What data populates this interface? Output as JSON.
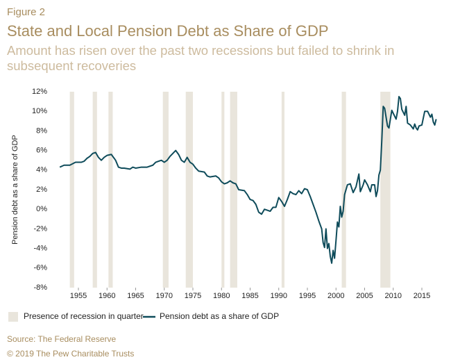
{
  "chart_data": {
    "type": "line",
    "figure_label": "Figure 2",
    "title": "State and Local Pension Debt as Share of GDP",
    "subtitle": [
      "Amount has risen over the past two recessions but failed to shrink in",
      "subsequent recoveries"
    ],
    "y_label": "Pension debt as a share of GDP",
    "source": "Source: The Federal Reserve",
    "copyright": "© 2019 The Pew Charitable Trusts",
    "xlim": [
      1951,
      2018
    ],
    "xticks": [
      1955,
      1960,
      1965,
      1970,
      1975,
      1980,
      1985,
      1990,
      1995,
      2000,
      2005,
      2010,
      2015
    ],
    "ylim": [
      -8,
      12
    ],
    "yticks": [
      {
        "value": -8,
        "label": "-8%"
      },
      {
        "value": -6,
        "label": "-6%"
      },
      {
        "value": -4,
        "label": "-4%"
      },
      {
        "value": -2,
        "label": "-2%"
      },
      {
        "value": 0,
        "label": "0%"
      },
      {
        "value": 2,
        "label": "2%"
      },
      {
        "value": 4,
        "label": "4%"
      },
      {
        "value": 6,
        "label": "6%"
      },
      {
        "value": 8,
        "label": "8%"
      },
      {
        "value": 10,
        "label": "10%"
      },
      {
        "value": 12,
        "label": "12%"
      }
    ],
    "recession_name": "Presence of recession in quarter",
    "recession_color": "#e9e5dc",
    "recessions": [
      [
        1953.5,
        1954.25
      ],
      [
        1957.5,
        1958.25
      ],
      [
        1960.25,
        1961.0
      ],
      [
        1969.75,
        1970.75
      ],
      [
        1973.75,
        1975.0
      ],
      [
        1980.0,
        1980.5
      ],
      [
        1981.5,
        1982.75
      ],
      [
        1990.5,
        1991.0
      ],
      [
        2001.0,
        2001.75
      ],
      [
        2007.75,
        2009.5
      ]
    ],
    "x": [
      1951.75,
      1952.5,
      1953.5,
      1954.5,
      1955.5,
      1956,
      1956.5,
      1957,
      1957.5,
      1958,
      1958.5,
      1959,
      1959.5,
      1960,
      1960.75,
      1961.5,
      1962,
      1962.5,
      1963,
      1964,
      1964.5,
      1965,
      1966,
      1967,
      1968,
      1968.5,
      1969,
      1969.5,
      1970,
      1970.5,
      1971,
      1971.5,
      1972,
      1972.5,
      1973,
      1973.5,
      1974,
      1974.5,
      1975,
      1975.5,
      1976,
      1977,
      1977.5,
      1978,
      1979,
      1979.5,
      1980,
      1980.5,
      1981,
      1981.5,
      1982,
      1982.5,
      1983,
      1984,
      1984.5,
      1985,
      1985.5,
      1986,
      1986.5,
      1987,
      1987.5,
      1988,
      1988.5,
      1989,
      1989.5,
      1990,
      1990.5,
      1991,
      1991.5,
      1992,
      1992.5,
      1993,
      1993.5,
      1994,
      1994.5,
      1995,
      1995.5,
      1996,
      1996.5,
      1997,
      1997.5,
      1997.75,
      1998,
      1998.25,
      1998.5,
      1998.75,
      1999,
      1999.25,
      1999.5,
      1999.75,
      2000,
      2000.25,
      2000.5,
      2000.75,
      2001,
      2001.25,
      2001.5,
      2002,
      2002.5,
      2003,
      2003.5,
      2004,
      2004.25,
      2004.75,
      2005,
      2005.5,
      2006,
      2006.25,
      2006.75,
      2007,
      2007.25,
      2007.5,
      2007.75,
      2008,
      2008.25,
      2008.5,
      2009,
      2009.25,
      2009.75,
      2010,
      2010.5,
      2010.75,
      2011,
      2011.25,
      2011.5,
      2012,
      2012.25,
      2012.5,
      2013,
      2013.5,
      2013.75,
      2014,
      2014.25,
      2014.5,
      2015,
      2015.5,
      2016,
      2016.25,
      2016.5,
      2016.75,
      2017,
      2017.25,
      2017.5
    ],
    "series": [
      {
        "name": "Pension debt as a share of GDP",
        "color": "#0e4b5a",
        "values": [
          4.3,
          4.5,
          4.5,
          4.8,
          4.8,
          4.9,
          5.2,
          5.4,
          5.7,
          5.8,
          5.3,
          5.0,
          5.3,
          5.5,
          5.6,
          5.0,
          4.3,
          4.2,
          4.2,
          4.1,
          4.3,
          4.2,
          4.3,
          4.3,
          4.5,
          4.8,
          4.9,
          5.0,
          4.8,
          5.0,
          5.4,
          5.7,
          6.0,
          5.6,
          5.0,
          4.8,
          5.3,
          4.8,
          4.6,
          4.2,
          3.9,
          3.8,
          3.4,
          3.3,
          3.4,
          3.2,
          2.8,
          2.6,
          2.7,
          2.9,
          2.7,
          2.6,
          2.0,
          1.9,
          1.5,
          1.0,
          0.9,
          0.5,
          -0.3,
          -0.5,
          0.0,
          -0.1,
          -0.2,
          0.2,
          0.2,
          1.2,
          0.8,
          0.3,
          1.0,
          1.8,
          1.6,
          1.5,
          1.9,
          1.6,
          2.1,
          2.0,
          1.3,
          0.5,
          -0.3,
          -1.2,
          -2.0,
          -3.4,
          -3.9,
          -2.0,
          -4.0,
          -3.5,
          -4.8,
          -5.5,
          -4.2,
          -5.0,
          -3.2,
          -1.3,
          -1.8,
          0.3,
          -0.8,
          -0.2,
          1.5,
          2.5,
          2.6,
          1.7,
          2.3,
          3.6,
          1.8,
          2.5,
          3.0,
          2.5,
          1.8,
          2.5,
          2.5,
          1.3,
          1.9,
          3.5,
          4.0,
          7.0,
          10.5,
          10.3,
          8.5,
          8.3,
          10.1,
          9.8,
          9.2,
          10.0,
          11.5,
          11.3,
          10.2,
          9.6,
          10.5,
          8.8,
          8.6,
          8.2,
          8.7,
          8.3,
          8.1,
          8.5,
          8.6,
          10.0,
          10.0,
          9.7,
          9.4,
          9.7,
          8.9,
          8.6,
          9.2
        ]
      }
    ]
  }
}
